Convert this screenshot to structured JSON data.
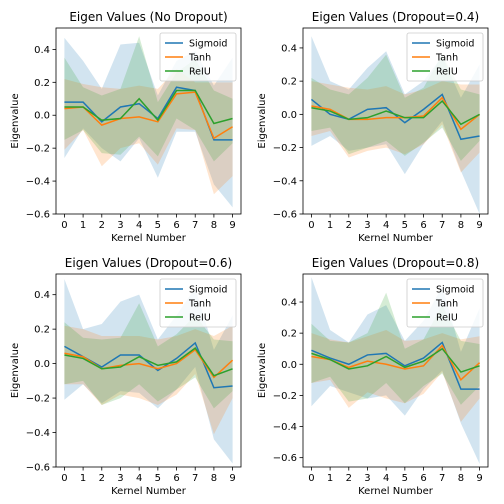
{
  "chart_data": [
    {
      "type": "line",
      "title": "Eigen Values (No Dropout)",
      "xlabel": "Kernel Number",
      "ylabel": "Eigenvalue",
      "x": [
        0,
        1,
        2,
        3,
        4,
        5,
        6,
        7,
        8,
        9
      ],
      "xlim": [
        -0.45,
        9.45
      ],
      "ylim": [
        -0.6,
        0.53
      ],
      "yticks": [
        -0.6,
        -0.4,
        -0.2,
        0.0,
        0.2,
        0.4
      ],
      "legend": "top-right",
      "series": [
        {
          "name": "Sigmoid",
          "color": "#1f77b4",
          "values": [
            0.08,
            0.08,
            -0.04,
            0.05,
            0.07,
            -0.02,
            0.17,
            0.15,
            -0.15,
            -0.15
          ],
          "lower": [
            -0.26,
            -0.08,
            -0.2,
            -0.28,
            -0.14,
            -0.38,
            -0.1,
            -0.1,
            -0.42,
            -0.56
          ],
          "upper": [
            0.47,
            0.33,
            0.16,
            0.43,
            0.44,
            0.12,
            0.33,
            0.39,
            0.18,
            0.35
          ]
        },
        {
          "name": "Tanh",
          "color": "#ff7f0e",
          "values": [
            0.04,
            0.05,
            -0.06,
            -0.02,
            -0.01,
            -0.04,
            0.13,
            0.14,
            -0.14,
            -0.07
          ],
          "lower": [
            -0.21,
            -0.09,
            -0.31,
            -0.2,
            -0.17,
            -0.3,
            -0.08,
            -0.09,
            -0.48,
            -0.37
          ],
          "upper": [
            0.22,
            0.19,
            0.17,
            0.16,
            0.18,
            0.16,
            0.28,
            0.2,
            0.2,
            0.2
          ]
        },
        {
          "name": "ReIU",
          "color": "#2ca02c",
          "values": [
            0.05,
            0.05,
            -0.03,
            -0.02,
            0.1,
            -0.03,
            0.15,
            0.15,
            -0.05,
            -0.02
          ],
          "lower": [
            -0.15,
            -0.09,
            -0.23,
            -0.24,
            -0.13,
            -0.25,
            -0.02,
            -0.09,
            -0.28,
            -0.17
          ],
          "upper": [
            0.35,
            0.17,
            0.12,
            0.16,
            0.48,
            0.08,
            0.26,
            0.34,
            0.15,
            0.1
          ]
        }
      ]
    },
    {
      "type": "line",
      "title": "Eigen Values (Dropout=0.4)",
      "xlabel": "Kernel Number",
      "ylabel": "Eigenvalue",
      "x": [
        0,
        1,
        2,
        3,
        4,
        5,
        6,
        7,
        8,
        9
      ],
      "xlim": [
        -0.45,
        9.45
      ],
      "ylim": [
        -0.6,
        0.52
      ],
      "yticks": [
        -0.6,
        -0.4,
        -0.2,
        0.0,
        0.2,
        0.4
      ],
      "legend": "top-right",
      "series": [
        {
          "name": "Sigmoid",
          "color": "#1f77b4",
          "values": [
            0.09,
            0.0,
            -0.03,
            0.03,
            0.04,
            -0.05,
            0.03,
            0.12,
            -0.15,
            -0.13
          ],
          "lower": [
            -0.19,
            -0.13,
            -0.22,
            -0.2,
            -0.18,
            -0.36,
            -0.18,
            -0.04,
            -0.34,
            -0.6
          ],
          "upper": [
            0.47,
            0.2,
            0.15,
            0.28,
            0.38,
            0.12,
            0.2,
            0.35,
            0.1,
            0.3
          ]
        },
        {
          "name": "Tanh",
          "color": "#ff7f0e",
          "values": [
            0.05,
            0.03,
            -0.03,
            -0.03,
            -0.02,
            -0.02,
            -0.01,
            0.1,
            -0.09,
            0.0
          ],
          "lower": [
            -0.13,
            -0.1,
            -0.26,
            -0.22,
            -0.2,
            -0.24,
            -0.18,
            -0.06,
            -0.35,
            -0.23
          ],
          "upper": [
            0.2,
            0.18,
            0.16,
            0.15,
            0.17,
            0.12,
            0.15,
            0.2,
            0.18,
            0.18
          ]
        },
        {
          "name": "ReIU",
          "color": "#2ca02c",
          "values": [
            0.04,
            0.02,
            -0.03,
            -0.02,
            0.02,
            -0.02,
            -0.02,
            0.08,
            -0.06,
            0.0
          ],
          "lower": [
            -0.1,
            -0.08,
            -0.24,
            -0.2,
            -0.16,
            -0.25,
            -0.17,
            -0.08,
            -0.28,
            -0.16
          ],
          "upper": [
            0.22,
            0.15,
            0.12,
            0.22,
            0.36,
            0.1,
            0.16,
            0.36,
            0.15,
            0.12
          ]
        }
      ]
    },
    {
      "type": "line",
      "title": "Eigen Values (Dropout=0.6)",
      "xlabel": "Kernel Number",
      "ylabel": "Eigenvalue",
      "x": [
        0,
        1,
        2,
        3,
        4,
        5,
        6,
        7,
        8,
        9
      ],
      "xlim": [
        -0.45,
        9.45
      ],
      "ylim": [
        -0.6,
        0.52
      ],
      "yticks": [
        -0.6,
        -0.4,
        -0.2,
        0.0,
        0.2,
        0.4
      ],
      "legend": "top-right",
      "series": [
        {
          "name": "Sigmoid",
          "color": "#1f77b4",
          "values": [
            0.1,
            0.04,
            -0.02,
            0.05,
            0.05,
            -0.04,
            0.03,
            0.12,
            -0.14,
            -0.13
          ],
          "lower": [
            -0.21,
            -0.12,
            -0.23,
            -0.16,
            -0.17,
            -0.26,
            -0.15,
            -0.02,
            -0.44,
            -0.58
          ],
          "upper": [
            0.49,
            0.2,
            0.23,
            0.36,
            0.4,
            0.14,
            0.28,
            0.44,
            0.08,
            0.28
          ]
        },
        {
          "name": "Tanh",
          "color": "#ff7f0e",
          "values": [
            0.06,
            0.04,
            -0.03,
            -0.01,
            0.0,
            -0.03,
            0.0,
            0.08,
            -0.08,
            0.02
          ],
          "lower": [
            -0.12,
            -0.12,
            -0.24,
            -0.18,
            -0.2,
            -0.24,
            -0.18,
            -0.06,
            -0.41,
            -0.2
          ],
          "upper": [
            0.22,
            0.2,
            0.16,
            0.16,
            0.16,
            0.14,
            0.16,
            0.2,
            0.16,
            0.22
          ]
        },
        {
          "name": "ReIU",
          "color": "#2ca02c",
          "values": [
            0.05,
            0.03,
            -0.03,
            -0.02,
            0.04,
            -0.01,
            0.01,
            0.09,
            -0.07,
            -0.03
          ],
          "lower": [
            -0.12,
            -0.1,
            -0.24,
            -0.2,
            -0.12,
            -0.22,
            -0.15,
            -0.08,
            -0.26,
            -0.16
          ],
          "upper": [
            0.24,
            0.15,
            0.14,
            0.15,
            0.35,
            0.1,
            0.17,
            0.28,
            0.14,
            0.13
          ]
        }
      ]
    },
    {
      "type": "line",
      "title": "Eigen Values (Dropout=0.8)",
      "xlabel": "Kernel Number",
      "ylabel": "Eigenvalue",
      "x": [
        0,
        1,
        2,
        3,
        4,
        5,
        6,
        7,
        8,
        9
      ],
      "xlim": [
        -0.45,
        9.45
      ],
      "ylim": [
        -0.66,
        0.58
      ],
      "yticks": [
        -0.6,
        -0.4,
        -0.2,
        0.0,
        0.2,
        0.4
      ],
      "legend": "top-right",
      "series": [
        {
          "name": "Sigmoid",
          "color": "#1f77b4",
          "values": [
            0.09,
            0.04,
            0.0,
            0.06,
            0.07,
            -0.01,
            0.04,
            0.14,
            -0.16,
            -0.16
          ],
          "lower": [
            -0.27,
            -0.14,
            -0.18,
            -0.22,
            -0.2,
            -0.33,
            -0.16,
            -0.04,
            -0.38,
            -0.64
          ],
          "upper": [
            0.56,
            0.22,
            0.14,
            0.32,
            0.38,
            0.15,
            0.28,
            0.5,
            0.08,
            0.36
          ]
        },
        {
          "name": "Tanh",
          "color": "#ff7f0e",
          "values": [
            0.05,
            0.03,
            -0.02,
            0.02,
            0.0,
            -0.03,
            -0.01,
            0.12,
            -0.1,
            0.01
          ],
          "lower": [
            -0.12,
            -0.1,
            -0.28,
            -0.18,
            -0.22,
            -0.25,
            -0.19,
            -0.05,
            -0.37,
            -0.22
          ],
          "upper": [
            0.2,
            0.16,
            0.14,
            0.18,
            0.22,
            0.15,
            0.16,
            0.2,
            0.16,
            0.18
          ]
        },
        {
          "name": "ReIU",
          "color": "#2ca02c",
          "values": [
            0.07,
            0.03,
            -0.03,
            -0.01,
            0.05,
            -0.02,
            0.02,
            0.1,
            -0.05,
            -0.01
          ],
          "lower": [
            -0.12,
            -0.08,
            -0.24,
            -0.22,
            -0.12,
            -0.25,
            -0.14,
            -0.06,
            -0.26,
            -0.14
          ],
          "upper": [
            0.26,
            0.15,
            0.14,
            0.2,
            0.46,
            0.1,
            0.16,
            0.38,
            0.15,
            0.13
          ]
        }
      ]
    }
  ]
}
